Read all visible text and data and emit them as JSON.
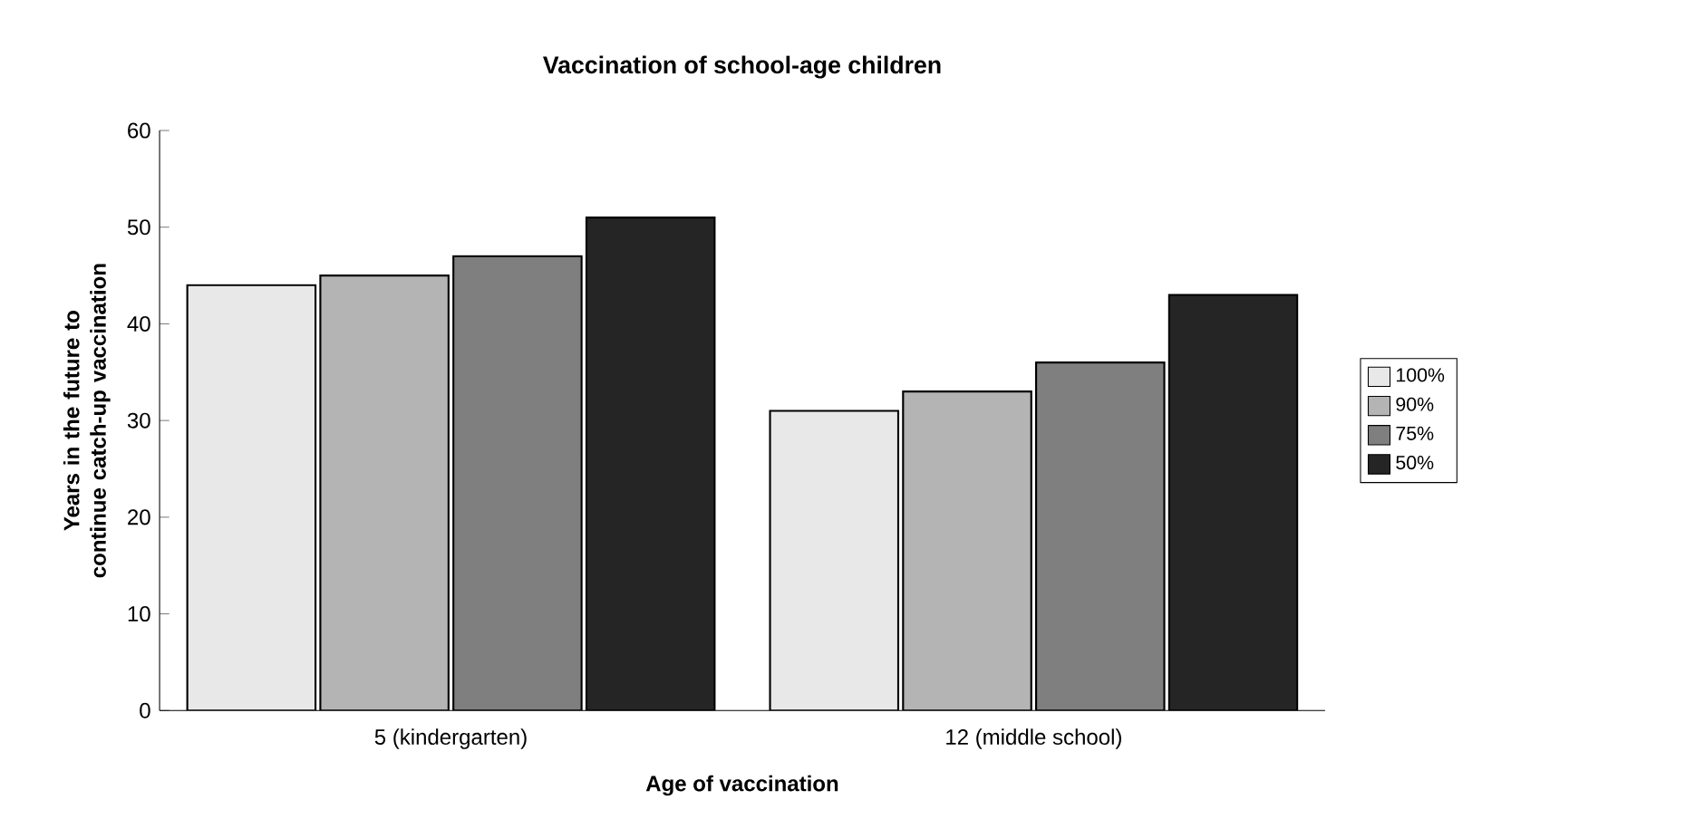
{
  "chart_data": {
    "type": "bar",
    "title": "Vaccination of school-age children",
    "xlabel": "Age of vaccination",
    "ylabel": "Years in the future to continue catch-up vaccination",
    "categories": [
      "5 (kindergarten)",
      "12 (middle school)"
    ],
    "series": [
      {
        "name": "100%",
        "color": "#e8e8e8",
        "values": [
          44,
          31
        ]
      },
      {
        "name": "90%",
        "color": "#b4b4b4",
        "values": [
          45,
          33
        ]
      },
      {
        "name": "75%",
        "color": "#7f7f7f",
        "values": [
          47,
          36
        ]
      },
      {
        "name": "50%",
        "color": "#252525",
        "values": [
          51,
          43
        ]
      }
    ],
    "ylim": [
      0,
      60
    ],
    "yticks": [
      0,
      10,
      20,
      30,
      40,
      50,
      60
    ],
    "grid": false,
    "legend": "right"
  }
}
